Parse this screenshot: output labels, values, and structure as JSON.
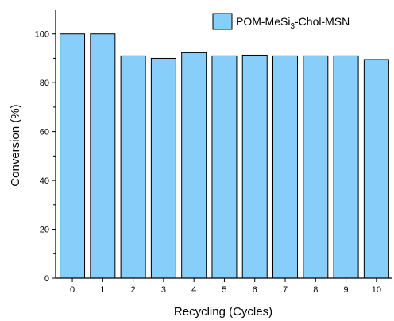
{
  "chart_data": {
    "type": "bar",
    "categories": [
      "0",
      "1",
      "2",
      "3",
      "4",
      "5",
      "6",
      "7",
      "8",
      "9",
      "10"
    ],
    "series": [
      {
        "name": "POM-MeSi3-Chol-MSN",
        "name_parts": {
          "before": "POM-MeSi",
          "sub": "3",
          "after": "-Chol-MSN"
        },
        "values": [
          100,
          100,
          91,
          90,
          92.3,
          91,
          91.3,
          91,
          91,
          91,
          89.5
        ],
        "color": "#87CEFA"
      }
    ],
    "xlabel": "Recycling (Cycles)",
    "ylabel": "Conversion (%)",
    "ylim": [
      0,
      110
    ],
    "yticks": [
      "0",
      "20",
      "40",
      "60",
      "80",
      "100"
    ],
    "legend_position": "top-right",
    "grid": false
  }
}
